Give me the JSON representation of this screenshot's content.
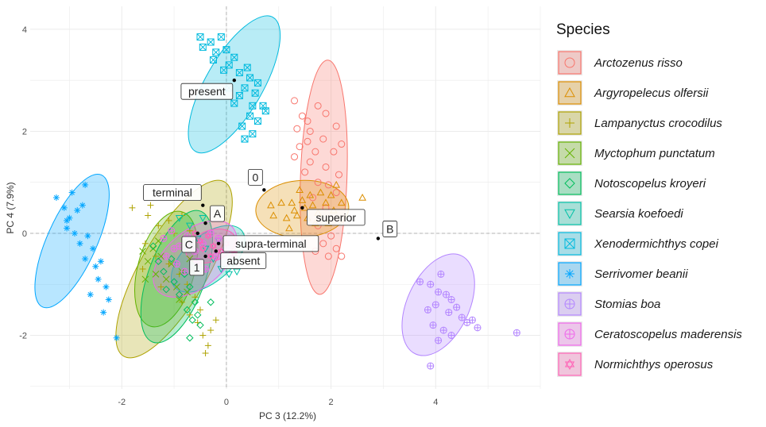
{
  "chart_data": {
    "type": "scatter",
    "xlabel": "PC 3 (12.2%)",
    "ylabel": "PC 4 (7.9%)",
    "xlim": [
      -3.75,
      6.0
    ],
    "ylim": [
      -3.05,
      4.45
    ],
    "xticks": [
      -2,
      0,
      2,
      4
    ],
    "yticks": [
      -2,
      0,
      2,
      4
    ],
    "grid": true,
    "reference_lines": {
      "x": 0,
      "y": 0,
      "style": "dashed"
    },
    "legend_position": "right",
    "legend_title": "Species",
    "series": [
      {
        "name": "Arctozenus risso",
        "color": "#F8766D",
        "shape": "circle",
        "ellipse": {
          "cx": 1.86,
          "cy": 1.1,
          "rx": 2.27,
          "ry": 0.45,
          "angle": 88
        },
        "points": [
          [
            1.3,
            2.6
          ],
          [
            1.45,
            2.3
          ],
          [
            1.6,
            2.0
          ],
          [
            1.75,
            2.5
          ],
          [
            1.55,
            1.8
          ],
          [
            1.9,
            2.35
          ],
          [
            2.1,
            2.1
          ],
          [
            1.7,
            1.6
          ],
          [
            1.4,
            1.7
          ],
          [
            1.85,
            1.85
          ],
          [
            2.05,
            1.6
          ],
          [
            1.6,
            1.4
          ],
          [
            1.35,
            2.05
          ],
          [
            1.9,
            1.3
          ],
          [
            2.2,
            1.75
          ],
          [
            1.5,
            1.2
          ],
          [
            1.75,
            1.0
          ],
          [
            1.95,
            0.95
          ],
          [
            1.3,
            1.5
          ],
          [
            2.15,
            1.15
          ],
          [
            1.65,
            0.7
          ],
          [
            1.9,
            0.5
          ],
          [
            2.05,
            0.25
          ],
          [
            1.75,
            0.15
          ],
          [
            2.0,
            -0.05
          ],
          [
            1.85,
            -0.2
          ],
          [
            2.1,
            -0.3
          ],
          [
            1.95,
            -0.45
          ],
          [
            2.2,
            -0.45
          ],
          [
            1.7,
            -0.35
          ],
          [
            2.1,
            0.8
          ],
          [
            1.55,
            2.2
          ]
        ]
      },
      {
        "name": "Argyropelecus olfersii",
        "color": "#DB8E00",
        "shape": "triangle",
        "ellipse": {
          "cx": 1.45,
          "cy": 0.48,
          "rx": 0.9,
          "ry": 0.55,
          "angle": 3
        },
        "points": [
          [
            0.85,
            0.55
          ],
          [
            0.9,
            0.35
          ],
          [
            1.05,
            0.6
          ],
          [
            1.15,
            0.3
          ],
          [
            1.2,
            0.1
          ],
          [
            1.3,
            0.45
          ],
          [
            1.35,
            0.35
          ],
          [
            1.45,
            0.65
          ],
          [
            1.5,
            0.5
          ],
          [
            1.55,
            0.3
          ],
          [
            1.6,
            0.75
          ],
          [
            1.65,
            0.55
          ],
          [
            1.75,
            0.4
          ],
          [
            1.8,
            0.8
          ],
          [
            1.9,
            0.6
          ],
          [
            2.0,
            0.75
          ],
          [
            2.05,
            0.45
          ],
          [
            2.1,
            0.95
          ],
          [
            1.95,
            0.2
          ],
          [
            1.4,
            0.85
          ],
          [
            1.25,
            0.6
          ],
          [
            2.6,
            0.7
          ],
          [
            1.7,
            0.2
          ],
          [
            2.2,
            0.6
          ]
        ]
      },
      {
        "name": "Lampanyctus crocodilus",
        "color": "#AEA200",
        "shape": "plus",
        "ellipse": {
          "cx": -1.0,
          "cy": -0.7,
          "rx": 1.95,
          "ry": 0.65,
          "angle": 60
        },
        "points": [
          [
            -1.8,
            0.5
          ],
          [
            -1.5,
            0.35
          ],
          [
            -1.3,
            0.15
          ],
          [
            -1.1,
            0.25
          ],
          [
            -0.85,
            0.35
          ],
          [
            -0.7,
            0.05
          ],
          [
            -1.55,
            -0.2
          ],
          [
            -1.35,
            -0.45
          ],
          [
            -1.1,
            -0.6
          ],
          [
            -0.9,
            -0.8
          ],
          [
            -0.75,
            -1.0
          ],
          [
            -0.6,
            -1.25
          ],
          [
            -0.5,
            -1.5
          ],
          [
            -0.55,
            -1.75
          ],
          [
            -0.45,
            -2.0
          ],
          [
            -0.35,
            -2.2
          ],
          [
            -0.4,
            -2.35
          ],
          [
            -0.3,
            -1.9
          ],
          [
            -0.7,
            -1.6
          ],
          [
            -0.85,
            -1.35
          ],
          [
            -1.6,
            -0.7
          ],
          [
            -1.25,
            -1.05
          ],
          [
            -1.45,
            0.55
          ],
          [
            -0.2,
            -1.7
          ],
          [
            -1.0,
            0.0
          ]
        ]
      },
      {
        "name": "Myctophum punctatum",
        "color": "#64B200",
        "shape": "cross",
        "ellipse": {
          "cx": -1.15,
          "cy": -0.7,
          "rx": 1.15,
          "ry": 0.55,
          "angle": 75
        },
        "points": [
          [
            -1.6,
            -0.35
          ],
          [
            -1.5,
            -0.55
          ],
          [
            -1.4,
            -0.3
          ],
          [
            -1.35,
            -0.8
          ],
          [
            -1.25,
            -0.45
          ],
          [
            -1.15,
            -0.9
          ],
          [
            -1.05,
            -0.6
          ],
          [
            -0.95,
            -1.05
          ],
          [
            -0.85,
            -0.75
          ],
          [
            -0.75,
            -1.15
          ],
          [
            -1.55,
            -0.9
          ],
          [
            -0.9,
            -1.3
          ],
          [
            -1.3,
            -0.15
          ],
          [
            -0.7,
            -0.5
          ]
        ]
      },
      {
        "name": "Notoscopelus kroyeri",
        "color": "#00BD5C",
        "shape": "diamond",
        "ellipse": {
          "cx": -0.95,
          "cy": -0.85,
          "rx": 1.35,
          "ry": 0.55,
          "angle": 70
        },
        "points": [
          [
            -1.4,
            -0.25
          ],
          [
            -1.3,
            -0.55
          ],
          [
            -1.2,
            -0.75
          ],
          [
            -1.05,
            -0.5
          ],
          [
            -1.0,
            -0.95
          ],
          [
            -0.9,
            -1.2
          ],
          [
            -0.8,
            -0.8
          ],
          [
            -0.7,
            -1.05
          ],
          [
            -0.6,
            -1.35
          ],
          [
            -0.75,
            -1.5
          ],
          [
            -0.65,
            -1.7
          ],
          [
            -0.5,
            -1.8
          ],
          [
            -1.15,
            -1.1
          ],
          [
            -0.55,
            -1.6
          ],
          [
            -0.7,
            -2.05
          ],
          [
            -0.3,
            -1.35
          ]
        ]
      },
      {
        "name": "Searsia koefoedi",
        "color": "#00C1A7",
        "shape": "triangle-down",
        "ellipse": {
          "cx": -0.35,
          "cy": -0.5,
          "rx": 0.85,
          "ry": 0.45,
          "angle": 40
        },
        "points": [
          [
            -0.9,
            0.3
          ],
          [
            -0.7,
            0.15
          ],
          [
            -0.55,
            -0.1
          ],
          [
            -0.4,
            -0.3
          ],
          [
            -0.25,
            -0.5
          ],
          [
            -0.1,
            -0.7
          ],
          [
            0.05,
            -0.8
          ],
          [
            0.2,
            -0.75
          ],
          [
            -0.45,
            0.3
          ],
          [
            -0.15,
            -0.15
          ]
        ]
      },
      {
        "name": "Xenodermichthys copei",
        "color": "#00BADE",
        "shape": "square-x",
        "ellipse": {
          "cx": 0.15,
          "cy": 2.92,
          "rx": 1.5,
          "ry": 0.55,
          "angle": 60
        },
        "points": [
          [
            -0.5,
            3.85
          ],
          [
            -0.45,
            3.65
          ],
          [
            -0.3,
            3.75
          ],
          [
            -0.2,
            3.55
          ],
          [
            -0.1,
            3.85
          ],
          [
            0.0,
            3.6
          ],
          [
            -0.25,
            3.4
          ],
          [
            0.05,
            3.3
          ],
          [
            0.15,
            3.45
          ],
          [
            -0.05,
            3.2
          ],
          [
            0.25,
            3.15
          ],
          [
            0.4,
            3.25
          ],
          [
            0.45,
            3.05
          ],
          [
            0.35,
            2.85
          ],
          [
            0.55,
            2.75
          ],
          [
            0.25,
            2.7
          ],
          [
            0.5,
            2.5
          ],
          [
            0.7,
            2.5
          ],
          [
            0.45,
            2.3
          ],
          [
            0.6,
            2.2
          ],
          [
            0.75,
            2.4
          ],
          [
            0.3,
            2.1
          ],
          [
            0.5,
            1.95
          ],
          [
            0.35,
            1.85
          ],
          [
            0.15,
            2.55
          ],
          [
            0.05,
            2.85
          ],
          [
            0.6,
            2.95
          ]
        ]
      },
      {
        "name": "Serrivomer beanii",
        "color": "#00A6FF",
        "shape": "asterisk",
        "ellipse": {
          "cx": -2.95,
          "cy": -0.15,
          "rx": 1.4,
          "ry": 0.48,
          "angle": 66
        },
        "points": [
          [
            -3.25,
            0.7
          ],
          [
            -3.1,
            0.5
          ],
          [
            -2.95,
            0.8
          ],
          [
            -3.0,
            0.3
          ],
          [
            -2.85,
            0.45
          ],
          [
            -2.7,
            0.95
          ],
          [
            -2.75,
            0.55
          ],
          [
            -3.05,
            0.1
          ],
          [
            -2.9,
            0.0
          ],
          [
            -2.8,
            -0.2
          ],
          [
            -2.65,
            -0.05
          ],
          [
            -2.55,
            -0.3
          ],
          [
            -2.7,
            -0.5
          ],
          [
            -2.5,
            -0.65
          ],
          [
            -2.4,
            -0.55
          ],
          [
            -2.45,
            -0.9
          ],
          [
            -2.3,
            -1.05
          ],
          [
            -2.6,
            -1.2
          ],
          [
            -2.25,
            -1.3
          ],
          [
            -2.35,
            -1.55
          ],
          [
            -2.1,
            -2.05
          ],
          [
            -3.05,
            0.25
          ]
        ]
      },
      {
        "name": "Stomias boa",
        "color": "#B385FF",
        "shape": "circle-plus",
        "ellipse": {
          "cx": 4.05,
          "cy": -1.4,
          "rx": 1.05,
          "ry": 0.6,
          "angle": 65
        },
        "points": [
          [
            3.7,
            -0.95
          ],
          [
            3.9,
            -1.0
          ],
          [
            4.05,
            -1.15
          ],
          [
            4.2,
            -1.2
          ],
          [
            4.3,
            -1.3
          ],
          [
            4.0,
            -1.4
          ],
          [
            3.85,
            -1.5
          ],
          [
            4.25,
            -1.55
          ],
          [
            4.4,
            -1.45
          ],
          [
            4.5,
            -1.65
          ],
          [
            4.6,
            -1.75
          ],
          [
            3.95,
            -1.8
          ],
          [
            4.15,
            -1.9
          ],
          [
            4.05,
            -2.1
          ],
          [
            4.3,
            -2.0
          ],
          [
            3.9,
            -2.6
          ],
          [
            4.8,
            -1.85
          ],
          [
            4.7,
            -1.7
          ],
          [
            5.55,
            -1.95
          ],
          [
            4.1,
            -0.8
          ]
        ]
      },
      {
        "name": "Ceratoscopelus maderensis",
        "color": "#EF67EB",
        "shape": "circle-plus",
        "ellipse": {
          "cx": -0.6,
          "cy": -0.5,
          "rx": 0.95,
          "ry": 0.55,
          "angle": 40
        },
        "points": [
          [
            -1.2,
            -0.1
          ],
          [
            -1.05,
            0.05
          ],
          [
            -0.9,
            -0.25
          ],
          [
            -0.75,
            -0.05
          ],
          [
            -0.6,
            -0.35
          ],
          [
            -0.45,
            -0.2
          ],
          [
            -0.3,
            0.0
          ],
          [
            -0.15,
            -0.1
          ],
          [
            -1.15,
            -0.45
          ],
          [
            -0.95,
            -0.6
          ],
          [
            -0.8,
            -0.75
          ],
          [
            -0.55,
            -0.55
          ],
          [
            -0.4,
            -0.7
          ],
          [
            -0.2,
            -0.45
          ],
          [
            -1.0,
            -0.3
          ]
        ]
      },
      {
        "name": "Normichthys operosus",
        "color": "#FF63B6",
        "shape": "star-david",
        "ellipse": {
          "cx": -0.3,
          "cy": -0.25,
          "rx": 0.5,
          "ry": 0.3,
          "angle": 20
        },
        "points": [
          [
            -0.6,
            0.0
          ],
          [
            -0.5,
            -0.15
          ],
          [
            -0.35,
            -0.05
          ],
          [
            -0.25,
            -0.25
          ],
          [
            -0.1,
            -0.35
          ],
          [
            -0.3,
            -0.45
          ],
          [
            -0.45,
            -0.3
          ],
          [
            0.0,
            -0.2
          ],
          [
            0.15,
            -0.4
          ]
        ]
      }
    ],
    "annotations": [
      {
        "label": "present",
        "x": 0.15,
        "y": 3.0,
        "label_side": "left-below"
      },
      {
        "label": "terminal",
        "x": -0.45,
        "y": 0.55,
        "label_side": "left-above"
      },
      {
        "label": "0",
        "x": 0.72,
        "y": 0.85,
        "label_side": "left-above"
      },
      {
        "label": "superior",
        "x": 1.45,
        "y": 0.5,
        "label_side": "right-below"
      },
      {
        "label": "A",
        "x": -0.4,
        "y": 0.2,
        "label_side": "right-above"
      },
      {
        "label": "B",
        "x": 2.9,
        "y": -0.1,
        "label_side": "right-above"
      },
      {
        "label": "C",
        "x": -0.55,
        "y": 0.0,
        "label_side": "left-below"
      },
      {
        "label": "supra-terminal",
        "x": -0.15,
        "y": -0.2,
        "label_side": "right"
      },
      {
        "label": "1",
        "x": -0.4,
        "y": -0.45,
        "label_side": "left-below"
      },
      {
        "label": "absent",
        "x": -0.2,
        "y": -0.35,
        "label_side": "right-below"
      }
    ]
  }
}
